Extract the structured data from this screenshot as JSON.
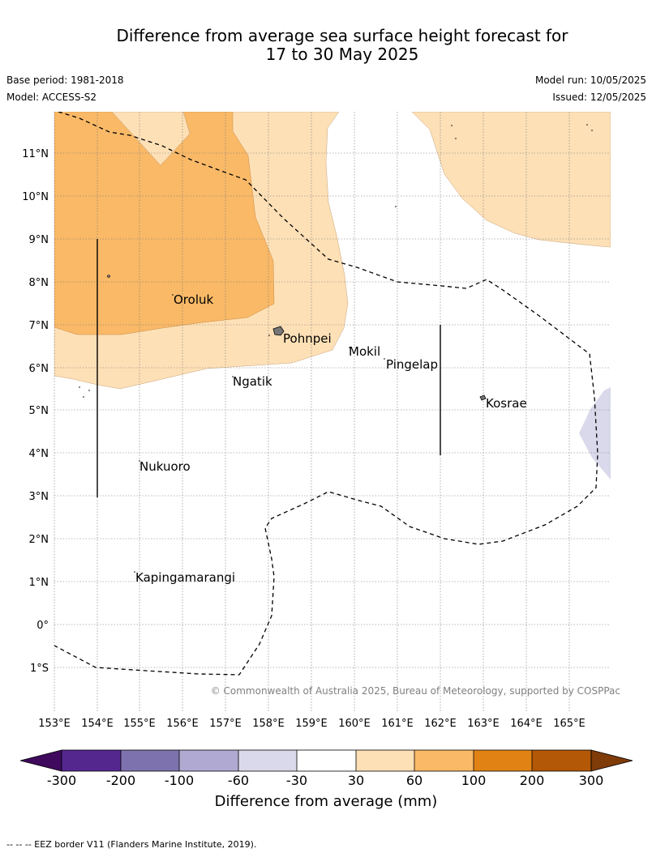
{
  "header": {
    "title_line1": "Difference from average sea surface height forecast for",
    "title_line2": "17 to 30 May 2025",
    "base_period": "Base period: 1981-2018",
    "model": "Model: ACCESS-S2",
    "model_run": "Model run: 10/05/2025",
    "issued": "Issued: 12/05/2025"
  },
  "map": {
    "lon_ticks": [
      "153°E",
      "154°E",
      "155°E",
      "156°E",
      "157°E",
      "158°E",
      "159°E",
      "160°E",
      "161°E",
      "162°E",
      "163°E",
      "164°E",
      "165°E"
    ],
    "lat_ticks": [
      "11°N",
      "10°N",
      "9°N",
      "8°N",
      "7°N",
      "6°N",
      "5°N",
      "4°N",
      "3°N",
      "2°N",
      "1°N",
      "0°",
      "1°S"
    ],
    "places": [
      {
        "name": "Oroluk"
      },
      {
        "name": "Pohnpei"
      },
      {
        "name": "Mokil"
      },
      {
        "name": "Pingelap"
      },
      {
        "name": "Ngatik"
      },
      {
        "name": "Kosrae"
      },
      {
        "name": "Nukuoro"
      },
      {
        "name": "Kapingamarangi"
      }
    ],
    "copyright": "© Commonwealth of Australia 2025, Bureau of Meteorology, supported by COSPPac",
    "layers": {
      "fill_30_60": "#fde0b6",
      "fill_60_100": "#f9b967",
      "fill_neg60_neg30": "#d9d9eb",
      "eez_border": "dashed"
    }
  },
  "colorbar": {
    "title": "Difference from average (mm)",
    "tick_labels": [
      "-300",
      "-200",
      "-100",
      "-60",
      "-30",
      "30",
      "60",
      "100",
      "200",
      "300"
    ],
    "colors": [
      "#3f0a5d",
      "#54278f",
      "#7e72ae",
      "#b0a9d1",
      "#d9d9eb",
      "#ffffff",
      "#fde0b6",
      "#f9b967",
      "#e08214",
      "#b35806",
      "#7f3b08"
    ]
  },
  "footer": {
    "legend_note": "--  --  -- EEZ border V11 (Flanders Marine Institute, 2019)."
  }
}
